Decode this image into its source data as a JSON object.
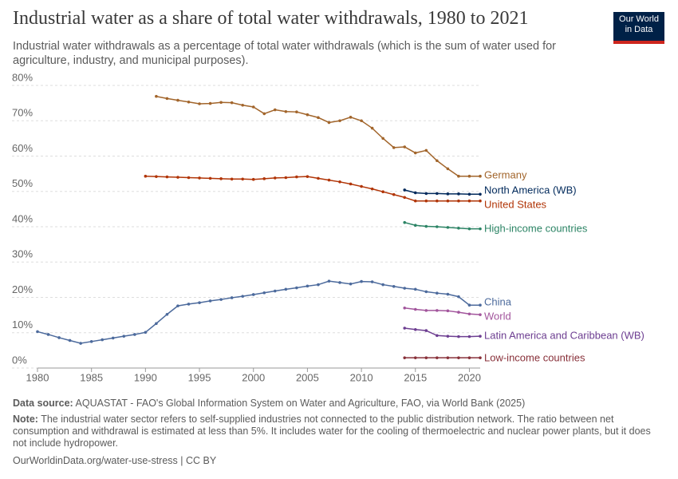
{
  "header": {
    "title": "Industrial water as a share of total water withdrawals, 1980 to 2021",
    "subtitle": "Industrial water withdrawals as a percentage of total water withdrawals (which is the sum of water used for agriculture, industry, and municipal purposes).",
    "logo": "Our World in Data"
  },
  "chart_data": {
    "type": "line",
    "x": [
      1980,
      1981,
      1982,
      1983,
      1984,
      1985,
      1986,
      1987,
      1988,
      1989,
      1990,
      1991,
      1992,
      1993,
      1994,
      1995,
      1996,
      1997,
      1998,
      1999,
      2000,
      2001,
      2002,
      2003,
      2004,
      2005,
      2006,
      2007,
      2008,
      2009,
      2010,
      2011,
      2012,
      2013,
      2014,
      2015,
      2016,
      2017,
      2018,
      2019,
      2020,
      2021
    ],
    "xlim": [
      1980,
      2021
    ],
    "xticks": [
      1980,
      1985,
      1990,
      1995,
      2000,
      2005,
      2010,
      2015,
      2020
    ],
    "ylim": [
      0,
      80
    ],
    "yticks": [
      {
        "value": 0,
        "label": "0%"
      },
      {
        "value": 10,
        "label": "10%"
      },
      {
        "value": 20,
        "label": "20%"
      },
      {
        "value": 30,
        "label": "30%"
      },
      {
        "value": 40,
        "label": "40%"
      },
      {
        "value": 50,
        "label": "50%"
      },
      {
        "value": 60,
        "label": "60%"
      },
      {
        "value": 70,
        "label": "70%"
      },
      {
        "value": 80,
        "label": "80%"
      }
    ],
    "grid": true,
    "series": [
      {
        "name": "Germany",
        "color": "#a2652b",
        "values": [
          null,
          null,
          null,
          null,
          null,
          null,
          null,
          null,
          null,
          null,
          null,
          76.9,
          76.3,
          75.8,
          75.3,
          74.8,
          74.9,
          75.2,
          75.1,
          74.4,
          73.9,
          72.0,
          73.1,
          72.6,
          72.5,
          71.7,
          70.9,
          69.5,
          70.0,
          71.0,
          70.0,
          67.9,
          65.0,
          62.4,
          62.6,
          60.9,
          61.6,
          58.7,
          56.4,
          54.3,
          54.3,
          54.3
        ]
      },
      {
        "name": "North America (WB)",
        "color": "#00295b",
        "values": [
          null,
          null,
          null,
          null,
          null,
          null,
          null,
          null,
          null,
          null,
          null,
          null,
          null,
          null,
          null,
          null,
          null,
          null,
          null,
          null,
          null,
          null,
          null,
          null,
          null,
          null,
          null,
          null,
          null,
          null,
          null,
          null,
          null,
          null,
          50.4,
          49.6,
          49.4,
          49.4,
          49.3,
          49.3,
          49.2,
          49.2
        ]
      },
      {
        "name": "United States",
        "color": "#b13507",
        "values": [
          null,
          null,
          null,
          null,
          null,
          null,
          null,
          null,
          null,
          null,
          54.3,
          54.2,
          54.1,
          54.0,
          53.9,
          53.8,
          53.7,
          53.6,
          53.5,
          53.5,
          53.4,
          53.6,
          53.8,
          53.9,
          54.1,
          54.2,
          53.7,
          53.2,
          52.7,
          52.1,
          51.4,
          50.7,
          49.9,
          49.1,
          48.3,
          47.3,
          47.3,
          47.3,
          47.3,
          47.3,
          47.3,
          47.3
        ]
      },
      {
        "name": "High-income countries",
        "color": "#2c8465",
        "values": [
          null,
          null,
          null,
          null,
          null,
          null,
          null,
          null,
          null,
          null,
          null,
          null,
          null,
          null,
          null,
          null,
          null,
          null,
          null,
          null,
          null,
          null,
          null,
          null,
          null,
          null,
          null,
          null,
          null,
          null,
          null,
          null,
          null,
          null,
          41.2,
          40.4,
          40.1,
          40.0,
          39.8,
          39.6,
          39.4,
          39.4
        ]
      },
      {
        "name": "China",
        "color": "#4c6a9c",
        "values": [
          10.3,
          9.5,
          8.6,
          7.8,
          7.0,
          7.5,
          8.0,
          8.5,
          9.0,
          9.5,
          10.1,
          12.6,
          15.2,
          17.6,
          18.1,
          18.5,
          19.0,
          19.4,
          19.9,
          20.3,
          20.8,
          21.3,
          21.8,
          22.3,
          22.7,
          23.2,
          23.6,
          24.6,
          24.2,
          23.8,
          24.5,
          24.4,
          23.6,
          23.1,
          22.6,
          22.3,
          21.6,
          21.2,
          20.9,
          20.2,
          17.8,
          17.8
        ]
      },
      {
        "name": "World",
        "color": "#a2559c",
        "values": [
          null,
          null,
          null,
          null,
          null,
          null,
          null,
          null,
          null,
          null,
          null,
          null,
          null,
          null,
          null,
          null,
          null,
          null,
          null,
          null,
          null,
          null,
          null,
          null,
          null,
          null,
          null,
          null,
          null,
          null,
          null,
          null,
          null,
          null,
          17.0,
          16.6,
          16.3,
          16.3,
          16.2,
          15.8,
          15.3,
          15.1
        ]
      },
      {
        "name": "Latin America and Caribbean (WB)",
        "color": "#6d3e91",
        "values": [
          null,
          null,
          null,
          null,
          null,
          null,
          null,
          null,
          null,
          null,
          null,
          null,
          null,
          null,
          null,
          null,
          null,
          null,
          null,
          null,
          null,
          null,
          null,
          null,
          null,
          null,
          null,
          null,
          null,
          null,
          null,
          null,
          null,
          null,
          11.3,
          10.9,
          10.6,
          9.2,
          9.0,
          8.9,
          8.9,
          9.0
        ]
      },
      {
        "name": "Low-income countries",
        "color": "#883039",
        "values": [
          null,
          null,
          null,
          null,
          null,
          null,
          null,
          null,
          null,
          null,
          null,
          null,
          null,
          null,
          null,
          null,
          null,
          null,
          null,
          null,
          null,
          null,
          null,
          null,
          null,
          null,
          null,
          null,
          null,
          null,
          null,
          null,
          null,
          null,
          2.9,
          2.9,
          2.9,
          2.9,
          2.9,
          2.9,
          2.9,
          2.9
        ]
      }
    ]
  },
  "footer": {
    "source_label": "Data source:",
    "source": "AQUASTAT - FAO's Global Information System on Water and Agriculture, FAO, via World Bank (2025)",
    "note_label": "Note:",
    "note": "The industrial water sector refers to self-supplied industries not connected to the public distribution network. The ratio between net consumption and withdrawal is estimated at less than 5%. It includes water for the cooling of thermoelectric and nuclear power plants, but it does not include hydropower.",
    "url": "OurWorldinData.org/water-use-stress | CC BY"
  }
}
